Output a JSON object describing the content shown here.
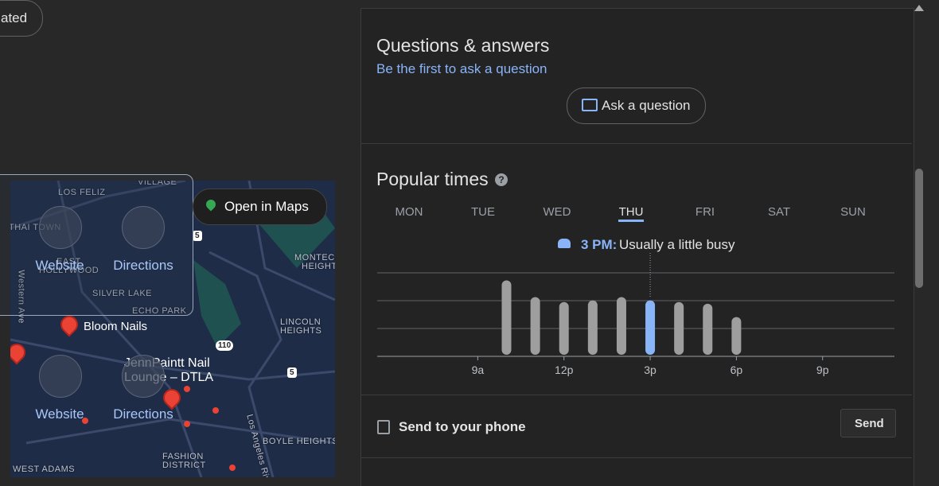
{
  "chip": "ated",
  "map": {
    "labels": [
      "VILLAGE",
      "LOS FELIZ",
      "THAI TOWN",
      "EAST",
      "HOLLYWOOD",
      "SILVER LAKE",
      "ECHO PARK",
      "Western Ave",
      "MONTEC",
      "HEIGHT",
      "LINCOLN",
      "HEIGHTS",
      "BOYLE HEIGHTS",
      "FASHION",
      "DISTRICT",
      "WEST ADAMS",
      "Los Angeles Riv"
    ],
    "shields": [
      "5",
      "110",
      "5"
    ],
    "places": [
      "Bloom Nails",
      "JennPaintt Nail Lounge – DTLA"
    ],
    "open_in_maps": "Open in Maps",
    "actions": [
      {
        "website": "Website",
        "directions": "Directions"
      },
      {
        "website": "Website",
        "directions": "Directions"
      }
    ]
  },
  "qa": {
    "title": "Questions & answers",
    "link": "Be the first to ask a question",
    "button": "Ask a question"
  },
  "chart_data": {
    "type": "bar",
    "title": "Popular times",
    "days": [
      "MON",
      "TUE",
      "WED",
      "THU",
      "FRI",
      "SAT",
      "SUN"
    ],
    "selected_day": 3,
    "annotation": {
      "time": "3 PM:",
      "text": "Usually a little busy"
    },
    "x": [
      10,
      11,
      12,
      13,
      14,
      15,
      16,
      17,
      18
    ],
    "values": [
      91,
      71,
      65,
      67,
      71,
      67,
      65,
      63,
      47
    ],
    "highlight": 5,
    "color": "#9e9e9e",
    "highlight_color": "#8ab4f8",
    "xlim": [
      5.5,
      23.5
    ],
    "xticks": [
      {
        "value": 9,
        "label": "9a"
      },
      {
        "value": 12,
        "label": "12p"
      },
      {
        "value": 15,
        "label": "3p"
      },
      {
        "value": 18,
        "label": "6p"
      },
      {
        "value": 21,
        "label": "9p"
      }
    ],
    "ylim": [
      0,
      100
    ],
    "yticks": [
      0,
      33.3,
      66.7,
      100
    ],
    "grid": true
  },
  "send": {
    "label": "Send to your phone",
    "button": "Send"
  }
}
